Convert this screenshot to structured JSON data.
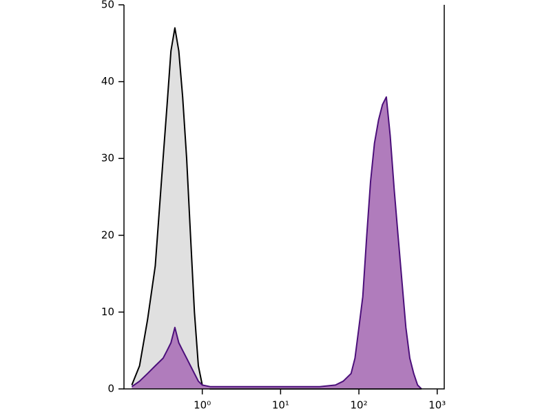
{
  "chart_data": {
    "type": "area",
    "xscale": "log",
    "x": [
      0.126,
      0.158,
      0.2,
      0.251,
      0.316,
      0.355,
      0.398,
      0.447,
      0.501,
      0.562,
      0.631,
      0.708,
      0.794,
      0.891,
      1,
      1.26,
      2,
      3.16,
      5.01,
      7.94,
      12.6,
      20,
      31.6,
      50.1,
      63.1,
      79.4,
      89.1,
      100,
      112,
      126,
      141,
      158,
      178,
      200,
      224,
      251,
      282,
      316,
      355,
      398,
      447,
      501,
      562,
      631
    ],
    "series": [
      {
        "stroke": "#000000",
        "color": "#e0e0e0",
        "values": [
          0.5,
          3,
          9,
          16,
          30,
          37,
          44,
          47,
          44,
          38,
          30,
          20,
          10,
          3,
          0.5,
          0,
          0,
          0,
          0,
          0,
          0,
          0,
          0,
          0,
          0,
          0,
          0,
          0,
          0,
          0,
          0,
          0,
          0,
          0,
          0,
          0,
          0,
          0,
          0,
          0,
          0,
          0,
          0,
          0
        ]
      },
      {
        "stroke": "#4b0f7a",
        "color": "#b07cbc",
        "values": [
          0.3,
          1,
          2,
          3,
          4,
          5,
          6,
          8,
          6,
          5,
          4,
          3,
          2,
          1,
          0.5,
          0.3,
          0.3,
          0.3,
          0.3,
          0.3,
          0.3,
          0.3,
          0.3,
          0.5,
          1,
          2,
          4,
          8,
          12,
          20,
          27,
          32,
          35,
          37,
          38,
          33,
          26,
          20,
          14,
          8,
          4,
          2,
          0.5,
          0
        ]
      }
    ],
    "xlim": [
      0.1,
      1230
    ],
    "ylim": [
      0,
      50
    ],
    "xticks": [
      {
        "value": 1,
        "label": "10⁰"
      },
      {
        "value": 10,
        "label": "10¹"
      },
      {
        "value": 100,
        "label": "10²"
      },
      {
        "value": 1000,
        "label": "10³"
      }
    ],
    "yticks": [
      0,
      10,
      20,
      30,
      40,
      50
    ]
  }
}
